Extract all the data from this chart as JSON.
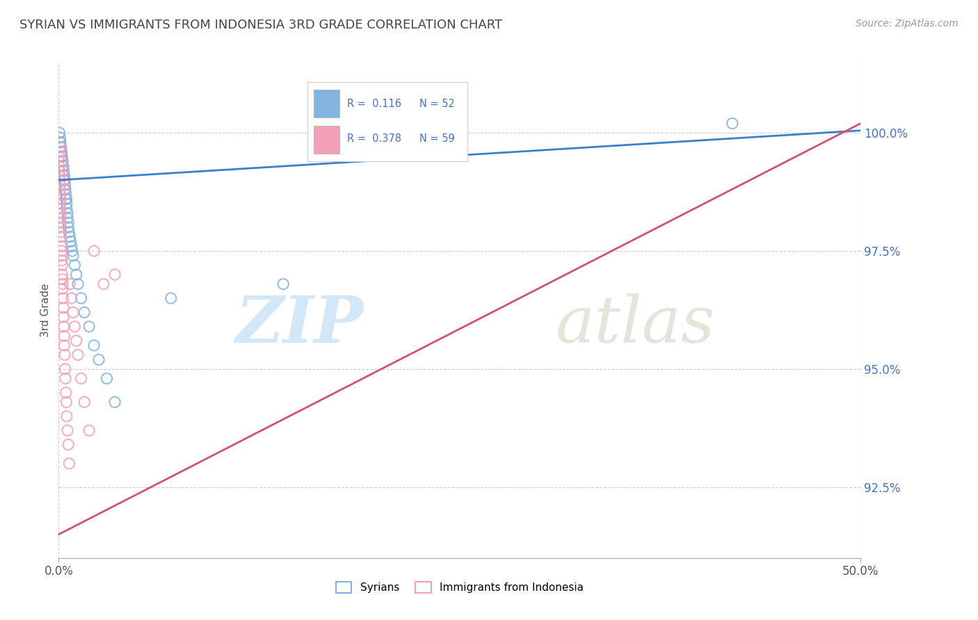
{
  "title": "SYRIAN VS IMMIGRANTS FROM INDONESIA 3RD GRADE CORRELATION CHART",
  "source": "Source: ZipAtlas.com",
  "ylabel": "3rd Grade",
  "xlim": [
    0.0,
    50.0
  ],
  "ylim": [
    91.0,
    101.5
  ],
  "yticks": [
    92.5,
    95.0,
    97.5,
    100.0
  ],
  "ytick_labels": [
    "92.5%",
    "95.0%",
    "97.5%",
    "100.0%"
  ],
  "blue_color": "#82B4E0",
  "pink_color": "#F4A0B8",
  "trend_blue": "#3B7FCC",
  "trend_pink": "#D45070",
  "watermark_zip": "ZIP",
  "watermark_atlas": "atlas",
  "syrians_x": [
    0.05,
    0.08,
    0.1,
    0.1,
    0.12,
    0.15,
    0.15,
    0.18,
    0.2,
    0.2,
    0.22,
    0.25,
    0.25,
    0.28,
    0.3,
    0.3,
    0.35,
    0.35,
    0.38,
    0.4,
    0.4,
    0.42,
    0.45,
    0.45,
    0.48,
    0.5,
    0.5,
    0.55,
    0.55,
    0.6,
    0.6,
    0.65,
    0.7,
    0.75,
    0.8,
    0.85,
    0.9,
    1.0,
    1.1,
    1.2,
    1.4,
    1.6,
    1.9,
    2.2,
    2.5,
    3.0,
    3.5,
    7.0,
    42.0,
    14.0,
    0.18,
    0.3
  ],
  "syrians_y": [
    100.0,
    99.9,
    99.8,
    99.8,
    99.7,
    99.7,
    99.6,
    99.6,
    99.5,
    99.5,
    99.4,
    99.4,
    99.3,
    99.3,
    99.2,
    99.2,
    99.1,
    99.0,
    99.0,
    98.9,
    98.8,
    98.8,
    98.7,
    98.6,
    98.6,
    98.5,
    98.4,
    98.3,
    98.2,
    98.1,
    98.0,
    97.9,
    97.8,
    97.7,
    97.6,
    97.5,
    97.4,
    97.2,
    97.0,
    96.8,
    96.5,
    96.2,
    95.9,
    95.5,
    95.2,
    94.8,
    94.3,
    96.5,
    100.2,
    96.8,
    99.6,
    99.1
  ],
  "indonesia_x": [
    0.02,
    0.03,
    0.04,
    0.05,
    0.06,
    0.07,
    0.08,
    0.08,
    0.09,
    0.1,
    0.1,
    0.12,
    0.12,
    0.14,
    0.15,
    0.15,
    0.16,
    0.18,
    0.18,
    0.2,
    0.2,
    0.22,
    0.22,
    0.24,
    0.25,
    0.25,
    0.28,
    0.3,
    0.3,
    0.32,
    0.35,
    0.35,
    0.38,
    0.4,
    0.42,
    0.45,
    0.48,
    0.5,
    0.55,
    0.6,
    0.65,
    0.7,
    0.8,
    0.9,
    1.0,
    1.1,
    1.2,
    1.4,
    1.6,
    1.9,
    2.2,
    2.8,
    3.5,
    0.1,
    0.15,
    0.2,
    0.25,
    0.3,
    0.35
  ],
  "indonesia_y": [
    99.5,
    99.3,
    99.2,
    99.1,
    99.0,
    98.9,
    98.8,
    98.7,
    98.6,
    98.5,
    98.4,
    98.3,
    98.2,
    98.1,
    98.0,
    97.9,
    97.8,
    97.6,
    97.5,
    97.4,
    97.3,
    97.2,
    97.0,
    96.9,
    96.8,
    96.7,
    96.5,
    96.3,
    96.1,
    95.9,
    95.7,
    95.5,
    95.3,
    95.0,
    94.8,
    94.5,
    94.3,
    94.0,
    93.7,
    93.4,
    93.0,
    96.8,
    96.5,
    96.2,
    95.9,
    95.6,
    95.3,
    94.8,
    94.3,
    93.7,
    97.5,
    96.8,
    97.0,
    99.7,
    99.6,
    99.4,
    99.2,
    99.0,
    98.8
  ]
}
